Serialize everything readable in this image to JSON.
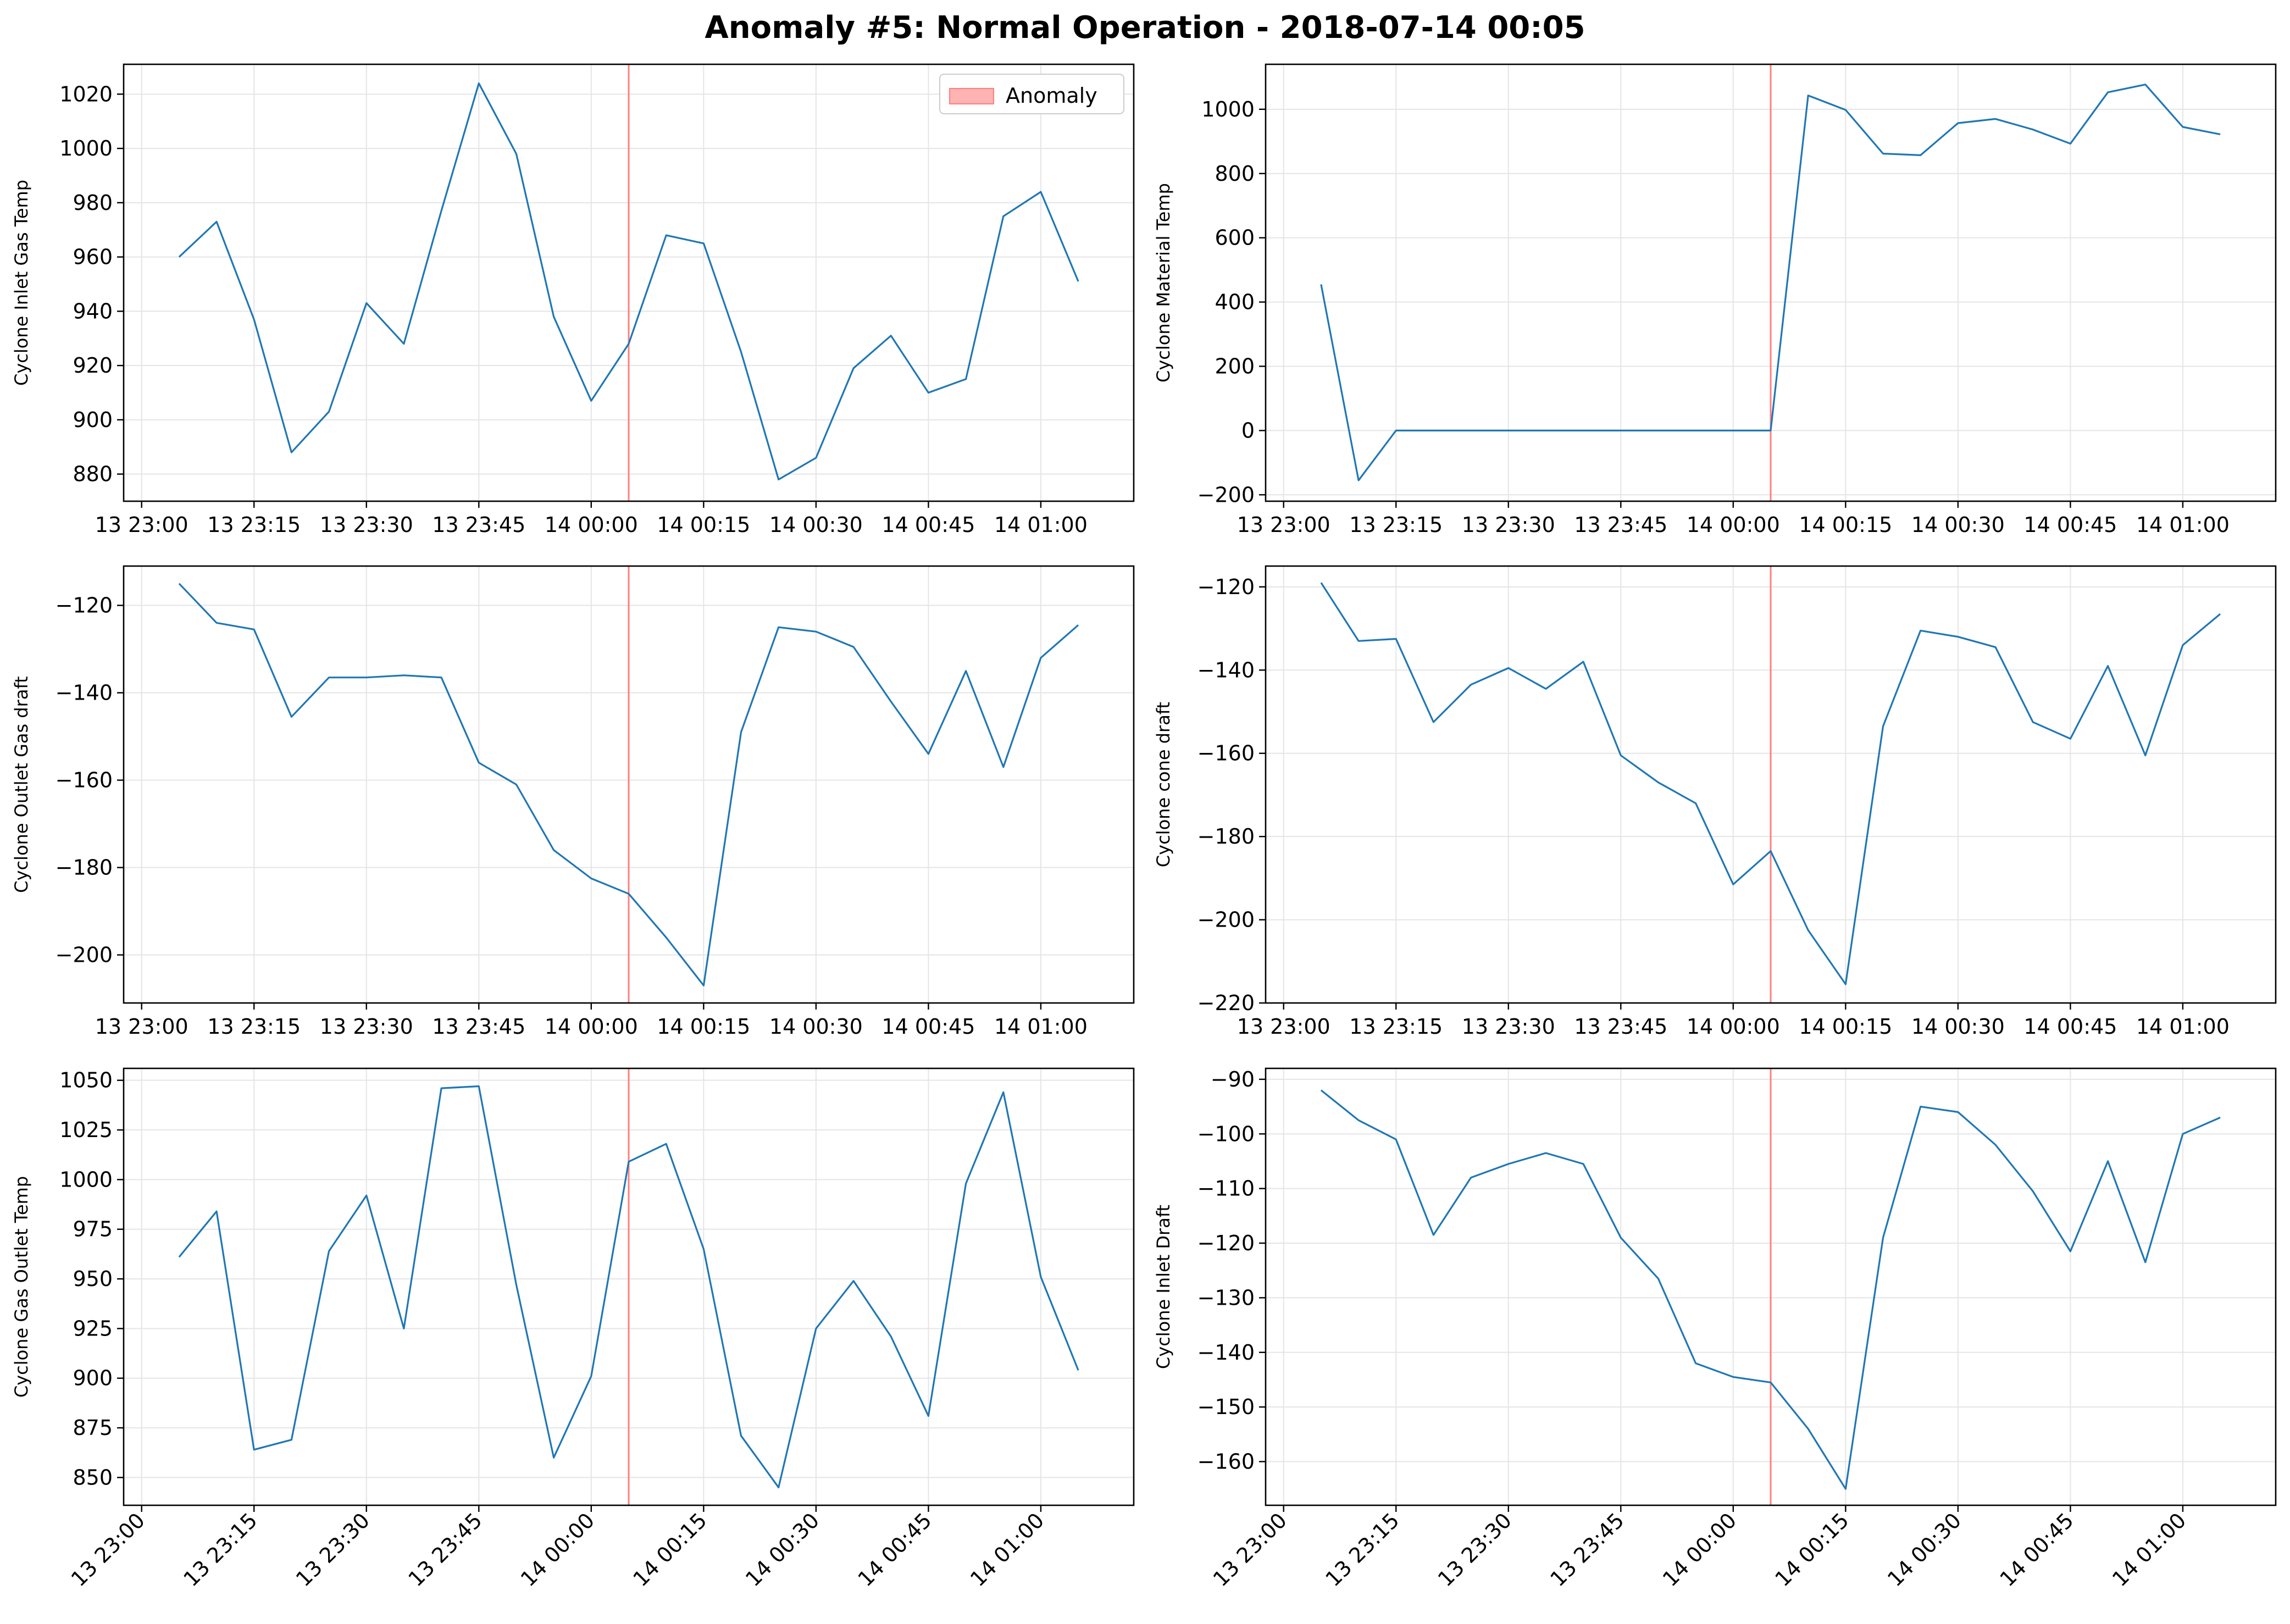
{
  "figure_title": "Anomaly #5: Normal Operation - 2018-07-14 00:05",
  "colors": {
    "line": "#1f77b4",
    "anomaly": "#ff7f7f",
    "grid": "#e5e5e5",
    "axis": "#000000"
  },
  "legend": {
    "label": "Anomaly",
    "placement": "upper-right"
  },
  "chart_data": [
    {
      "type": "line",
      "ylabel": "Cyclone Inlet Gas Temp",
      "x_ticks": [
        "13 23:00",
        "13 23:15",
        "13 23:30",
        "13 23:45",
        "14 00:00",
        "14 00:15",
        "14 00:30",
        "14 00:45",
        "14 01:00"
      ],
      "y_ticks": [
        880,
        900,
        920,
        940,
        960,
        980,
        1000,
        1020
      ],
      "ylim": [
        870,
        1031
      ],
      "anomaly_time": "14 00:05",
      "grid": true,
      "show_legend": true,
      "series": [
        {
          "x": [
            "13 23:05",
            "13 23:10",
            "13 23:15",
            "13 23:20",
            "13 23:25",
            "13 23:30",
            "13 23:35",
            "13 23:40",
            "13 23:45",
            "13 23:50",
            "13 23:55",
            "14 00:00",
            "14 00:05",
            "14 00:10",
            "14 00:15",
            "14 00:20",
            "14 00:25",
            "14 00:30",
            "14 00:35",
            "14 00:40",
            "14 00:45",
            "14 00:50",
            "14 00:55",
            "14 01:00",
            "14 01:05"
          ],
          "values": [
            960,
            973,
            937,
            888,
            903,
            943,
            928,
            977,
            1024,
            998,
            938,
            907,
            928,
            968,
            965,
            925,
            878,
            886,
            919,
            931,
            910,
            915,
            975,
            984,
            951
          ]
        }
      ]
    },
    {
      "type": "line",
      "ylabel": "Cyclone Material Temp",
      "x_ticks": [
        "13 23:00",
        "13 23:15",
        "13 23:30",
        "13 23:45",
        "14 00:00",
        "14 00:15",
        "14 00:30",
        "14 00:45",
        "14 01:00"
      ],
      "y_ticks": [
        -200,
        0,
        200,
        400,
        600,
        800,
        1000
      ],
      "ylim": [
        -220,
        1140
      ],
      "anomaly_time": "14 00:05",
      "grid": true,
      "show_legend": false,
      "series": [
        {
          "x": [
            "13 23:05",
            "13 23:10",
            "13 23:15",
            "13 23:20",
            "13 23:25",
            "13 23:30",
            "13 23:35",
            "13 23:40",
            "13 23:45",
            "13 23:50",
            "13 23:55",
            "14 00:00",
            "14 00:05",
            "14 00:10",
            "14 00:15",
            "14 00:20",
            "14 00:25",
            "14 00:30",
            "14 00:35",
            "14 00:40",
            "14 00:45",
            "14 00:50",
            "14 00:55",
            "14 01:00",
            "14 01:05"
          ],
          "values": [
            455,
            -155,
            0,
            0,
            0,
            0,
            0,
            0,
            0,
            0,
            0,
            0,
            0,
            1043,
            998,
            862,
            857,
            957,
            970,
            937,
            893,
            1053,
            1077,
            945,
            922
          ]
        }
      ]
    },
    {
      "type": "line",
      "ylabel": "Cyclone Outlet Gas draft",
      "x_ticks": [
        "13 23:00",
        "13 23:15",
        "13 23:30",
        "13 23:45",
        "14 00:00",
        "14 00:15",
        "14 00:30",
        "14 00:45",
        "14 01:00"
      ],
      "y_ticks": [
        -200,
        -180,
        -160,
        -140,
        -120
      ],
      "ylim": [
        -211,
        -111
      ],
      "anomaly_time": "14 00:05",
      "grid": true,
      "show_legend": false,
      "series": [
        {
          "x": [
            "13 23:05",
            "13 23:10",
            "13 23:15",
            "13 23:20",
            "13 23:25",
            "13 23:30",
            "13 23:35",
            "13 23:40",
            "13 23:45",
            "13 23:50",
            "13 23:55",
            "14 00:00",
            "14 00:05",
            "14 00:10",
            "14 00:15",
            "14 00:20",
            "14 00:25",
            "14 00:30",
            "14 00:35",
            "14 00:40",
            "14 00:45",
            "14 00:50",
            "14 00:55",
            "14 01:00",
            "14 01:05"
          ],
          "values": [
            -115,
            -124,
            -125.5,
            -145.5,
            -136.5,
            -136.5,
            -136,
            -136.5,
            -156,
            -161,
            -176,
            -182.5,
            -186,
            -196,
            -207,
            -149,
            -125,
            -126,
            -129.5,
            -142,
            -154,
            -135,
            -157,
            -132,
            -124.5
          ]
        }
      ]
    },
    {
      "type": "line",
      "ylabel": "Cyclone cone draft",
      "x_ticks": [
        "13 23:00",
        "13 23:15",
        "13 23:30",
        "13 23:45",
        "14 00:00",
        "14 00:15",
        "14 00:30",
        "14 00:45",
        "14 01:00"
      ],
      "y_ticks": [
        -220,
        -200,
        -180,
        -160,
        -140,
        -120
      ],
      "ylim": [
        -220,
        -115
      ],
      "anomaly_time": "14 00:05",
      "grid": true,
      "show_legend": false,
      "series": [
        {
          "x": [
            "13 23:05",
            "13 23:10",
            "13 23:15",
            "13 23:20",
            "13 23:25",
            "13 23:30",
            "13 23:35",
            "13 23:40",
            "13 23:45",
            "13 23:50",
            "13 23:55",
            "14 00:00",
            "14 00:05",
            "14 00:10",
            "14 00:15",
            "14 00:20",
            "14 00:25",
            "14 00:30",
            "14 00:35",
            "14 00:40",
            "14 00:45",
            "14 00:50",
            "14 00:55",
            "14 01:00",
            "14 01:05"
          ],
          "values": [
            -119,
            -133,
            -132.5,
            -152.5,
            -143.5,
            -139.5,
            -144.5,
            -138,
            -160.5,
            -167,
            -172,
            -191.5,
            -183.5,
            -202.5,
            -215.5,
            -153.5,
            -130.5,
            -132,
            -134.5,
            -152.5,
            -156.5,
            -139,
            -160.5,
            -134,
            -126.5
          ]
        }
      ]
    },
    {
      "type": "line",
      "ylabel": "Cyclone Gas Outlet Temp",
      "x_ticks": [
        "13 23:00",
        "13 23:15",
        "13 23:30",
        "13 23:45",
        "14 00:00",
        "14 00:15",
        "14 00:30",
        "14 00:45",
        "14 01:00"
      ],
      "y_ticks": [
        850,
        875,
        900,
        925,
        950,
        975,
        1000,
        1025,
        1050
      ],
      "ylim": [
        836,
        1056
      ],
      "anomaly_time": "14 00:05",
      "grid": true,
      "show_legend": false,
      "series": [
        {
          "x": [
            "13 23:05",
            "13 23:10",
            "13 23:15",
            "13 23:20",
            "13 23:25",
            "13 23:30",
            "13 23:35",
            "13 23:40",
            "13 23:45",
            "13 23:50",
            "13 23:55",
            "14 00:00",
            "14 00:05",
            "14 00:10",
            "14 00:15",
            "14 00:20",
            "14 00:25",
            "14 00:30",
            "14 00:35",
            "14 00:40",
            "14 00:45",
            "14 00:50",
            "14 00:55",
            "14 01:00",
            "14 01:05"
          ],
          "values": [
            961,
            984,
            864,
            869,
            964,
            992,
            925,
            1046,
            1047,
            947,
            860,
            901,
            1009,
            1018,
            965,
            871,
            845,
            925,
            949,
            921,
            881,
            998,
            1044,
            951,
            904
          ]
        }
      ]
    },
    {
      "type": "line",
      "ylabel": "Cyclone Inlet Draft",
      "x_ticks": [
        "13 23:00",
        "13 23:15",
        "13 23:30",
        "13 23:45",
        "14 00:00",
        "14 00:15",
        "14 00:30",
        "14 00:45",
        "14 01:00"
      ],
      "y_ticks": [
        -160,
        -150,
        -140,
        -130,
        -120,
        -110,
        -100,
        -90
      ],
      "ylim": [
        -168,
        -88
      ],
      "anomaly_time": "14 00:05",
      "grid": true,
      "show_legend": false,
      "series": [
        {
          "x": [
            "13 23:05",
            "13 23:10",
            "13 23:15",
            "13 23:20",
            "13 23:25",
            "13 23:30",
            "13 23:35",
            "13 23:40",
            "13 23:45",
            "13 23:50",
            "13 23:55",
            "14 00:00",
            "14 00:05",
            "14 00:10",
            "14 00:15",
            "14 00:20",
            "14 00:25",
            "14 00:30",
            "14 00:35",
            "14 00:40",
            "14 00:45",
            "14 00:50",
            "14 00:55",
            "14 01:00",
            "14 01:05"
          ],
          "values": [
            -92,
            -97.5,
            -101,
            -118.5,
            -108,
            -105.5,
            -103.5,
            -105.5,
            -119,
            -126.5,
            -142,
            -144.5,
            -145.5,
            -154,
            -165,
            -119,
            -95,
            -96,
            -102,
            -110.5,
            -121.5,
            -105,
            -123.5,
            -100,
            -97
          ]
        }
      ]
    }
  ]
}
